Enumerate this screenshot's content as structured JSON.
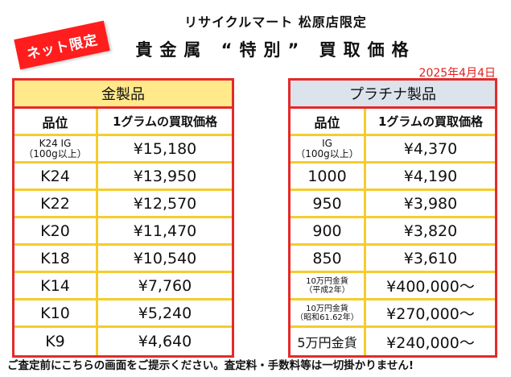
{
  "badge": "ネット限定",
  "store_name": "リサイクルマート 松原店限定",
  "title": "貴金属 “特別” 買取価格",
  "date": "2025年4月4日",
  "gold": {
    "heading": "金製品",
    "col_grade": "品位",
    "col_price": "1グラムの買取価格",
    "rows": [
      {
        "grade": "K24 IG",
        "grade_sub": "（100g以上）",
        "price": "¥15,180"
      },
      {
        "grade": "K24",
        "price": "¥13,950"
      },
      {
        "grade": "K22",
        "price": "¥12,570"
      },
      {
        "grade": "K20",
        "price": "¥11,470"
      },
      {
        "grade": "K18",
        "price": "¥10,540"
      },
      {
        "grade": "K14",
        "price": "¥7,760"
      },
      {
        "grade": "K10",
        "price": "¥5,240"
      },
      {
        "grade": "K9",
        "price": "¥4,640"
      }
    ]
  },
  "platinum": {
    "heading": "プラチナ製品",
    "col_grade": "品位",
    "col_price": "1グラムの買取価格",
    "rows": [
      {
        "grade": "IG",
        "grade_sub": "（100g以上）",
        "price": "¥4,370"
      },
      {
        "grade": "1000",
        "price": "¥4,190"
      },
      {
        "grade": "950",
        "price": "¥3,980"
      },
      {
        "grade": "900",
        "price": "¥3,820"
      },
      {
        "grade": "850",
        "price": "¥3,610"
      },
      {
        "grade": "10万円金貨",
        "grade_sub": "（平成2年）",
        "price": "¥400,000〜"
      },
      {
        "grade": "10万円金貨",
        "grade_sub": "（昭和61.62年）",
        "price": "¥270,000〜"
      },
      {
        "grade": "5万円金貨",
        "price": "¥240,000〜"
      }
    ]
  },
  "footer": "ご査定前にこちらの画面をご提示ください。査定料・手数料等は一切掛かりません!"
}
